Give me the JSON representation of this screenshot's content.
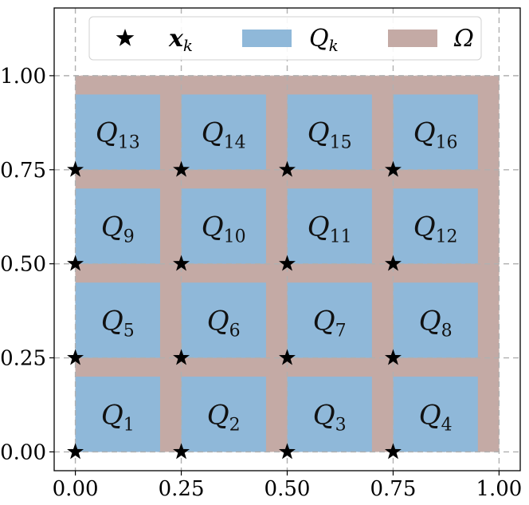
{
  "chart_data": {
    "type": "scatter",
    "xlim": [
      -0.05,
      1.05
    ],
    "ylim": [
      -0.05,
      1.18
    ],
    "grid": true,
    "legend_placement": "top",
    "x_ticks": [
      "0.00",
      "0.25",
      "0.50",
      "0.75",
      "1.00"
    ],
    "y_ticks": [
      "0.00",
      "0.25",
      "0.50",
      "0.75",
      "1.00"
    ],
    "tick_values": [
      0,
      0.25,
      0.5,
      0.75,
      1.0
    ],
    "colors": {
      "omega": "#c4aaa5",
      "q": "#8fb8d9",
      "star": "#000000",
      "grid": "#b0b0b0"
    },
    "legend": [
      {
        "key": "star",
        "symbol": "x",
        "sub": "k",
        "bold": true
      },
      {
        "key": "q",
        "symbol": "Q",
        "sub": "k"
      },
      {
        "key": "omega",
        "symbol": "Ω",
        "sub": ""
      }
    ],
    "omega": {
      "x0": 0,
      "y0": 0,
      "x1": 1,
      "y1": 1
    },
    "cells": [
      {
        "label": "Q",
        "sub": "1",
        "x0": 0.0,
        "y0": 0.0,
        "x1": 0.2,
        "y1": 0.2
      },
      {
        "label": "Q",
        "sub": "2",
        "x0": 0.25,
        "y0": 0.0,
        "x1": 0.45,
        "y1": 0.2
      },
      {
        "label": "Q",
        "sub": "3",
        "x0": 0.5,
        "y0": 0.0,
        "x1": 0.7,
        "y1": 0.2
      },
      {
        "label": "Q",
        "sub": "4",
        "x0": 0.75,
        "y0": 0.0,
        "x1": 0.95,
        "y1": 0.2
      },
      {
        "label": "Q",
        "sub": "5",
        "x0": 0.0,
        "y0": 0.25,
        "x1": 0.2,
        "y1": 0.45
      },
      {
        "label": "Q",
        "sub": "6",
        "x0": 0.25,
        "y0": 0.25,
        "x1": 0.45,
        "y1": 0.45
      },
      {
        "label": "Q",
        "sub": "7",
        "x0": 0.5,
        "y0": 0.25,
        "x1": 0.7,
        "y1": 0.45
      },
      {
        "label": "Q",
        "sub": "8",
        "x0": 0.75,
        "y0": 0.25,
        "x1": 0.95,
        "y1": 0.45
      },
      {
        "label": "Q",
        "sub": "9",
        "x0": 0.0,
        "y0": 0.5,
        "x1": 0.2,
        "y1": 0.7
      },
      {
        "label": "Q",
        "sub": "10",
        "x0": 0.25,
        "y0": 0.5,
        "x1": 0.45,
        "y1": 0.7
      },
      {
        "label": "Q",
        "sub": "11",
        "x0": 0.5,
        "y0": 0.5,
        "x1": 0.7,
        "y1": 0.7
      },
      {
        "label": "Q",
        "sub": "12",
        "x0": 0.75,
        "y0": 0.5,
        "x1": 0.95,
        "y1": 0.7
      },
      {
        "label": "Q",
        "sub": "13",
        "x0": 0.0,
        "y0": 0.75,
        "x1": 0.2,
        "y1": 0.95
      },
      {
        "label": "Q",
        "sub": "14",
        "x0": 0.25,
        "y0": 0.75,
        "x1": 0.45,
        "y1": 0.95
      },
      {
        "label": "Q",
        "sub": "15",
        "x0": 0.5,
        "y0": 0.75,
        "x1": 0.7,
        "y1": 0.95
      },
      {
        "label": "Q",
        "sub": "16",
        "x0": 0.75,
        "y0": 0.75,
        "x1": 0.95,
        "y1": 0.95
      }
    ],
    "points": [
      {
        "x": 0.0,
        "y": 0.0
      },
      {
        "x": 0.25,
        "y": 0.0
      },
      {
        "x": 0.5,
        "y": 0.0
      },
      {
        "x": 0.75,
        "y": 0.0
      },
      {
        "x": 0.0,
        "y": 0.25
      },
      {
        "x": 0.25,
        "y": 0.25
      },
      {
        "x": 0.5,
        "y": 0.25
      },
      {
        "x": 0.75,
        "y": 0.25
      },
      {
        "x": 0.0,
        "y": 0.5
      },
      {
        "x": 0.25,
        "y": 0.5
      },
      {
        "x": 0.5,
        "y": 0.5
      },
      {
        "x": 0.75,
        "y": 0.5
      },
      {
        "x": 0.0,
        "y": 0.75
      },
      {
        "x": 0.25,
        "y": 0.75
      },
      {
        "x": 0.5,
        "y": 0.75
      },
      {
        "x": 0.75,
        "y": 0.75
      }
    ]
  }
}
